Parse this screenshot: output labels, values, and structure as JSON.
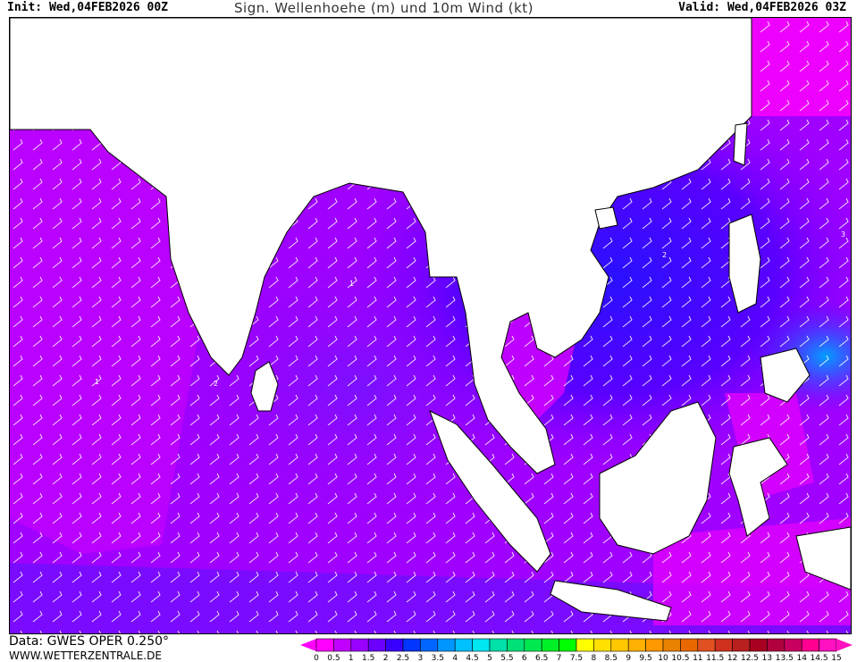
{
  "header": {
    "init": "Init: Wed,04FEB2026 00Z",
    "title": "Sign. Wellenhoehe (m) und 10m Wind (kt)",
    "valid": "Valid: Wed,04FEB2026 03Z"
  },
  "footer": {
    "data_source": "Data: GWES OPER 0.250°",
    "website": "WWW.WETTERZENTRALE.DE"
  },
  "map": {
    "region": "Indian Ocean / Southeast Asia",
    "land_color": "#ffffff",
    "contour_labels": [
      "1",
      "2",
      "3"
    ]
  },
  "legend": {
    "unit": "m",
    "ticks": [
      "0",
      "0.5",
      "1",
      "1.5",
      "2",
      "2.5",
      "3",
      "3.5",
      "4",
      "4.5",
      "5",
      "5.5",
      "6",
      "6.5",
      "7",
      "7.5",
      "8",
      "8.5",
      "9",
      "9.5",
      "10",
      "10.5",
      "11",
      "11.5",
      "12",
      "12.5",
      "13",
      "13.5",
      "14",
      "14.5",
      "15"
    ],
    "colors": [
      "#ff00ff",
      "#c000ff",
      "#9800ff",
      "#6c00ff",
      "#3800ff",
      "#0036ff",
      "#0066ff",
      "#0096ff",
      "#00c0ff",
      "#00e6f0",
      "#00e0a8",
      "#00e078",
      "#00e850",
      "#00f028",
      "#00ff00",
      "#ffff00",
      "#ffe000",
      "#ffc800",
      "#ffb000",
      "#ff9800",
      "#e88000",
      "#e86800",
      "#e05020",
      "#d03020",
      "#b82020",
      "#a80020",
      "#b00040",
      "#c80060",
      "#ff0090",
      "#ff10c0"
    ]
  }
}
